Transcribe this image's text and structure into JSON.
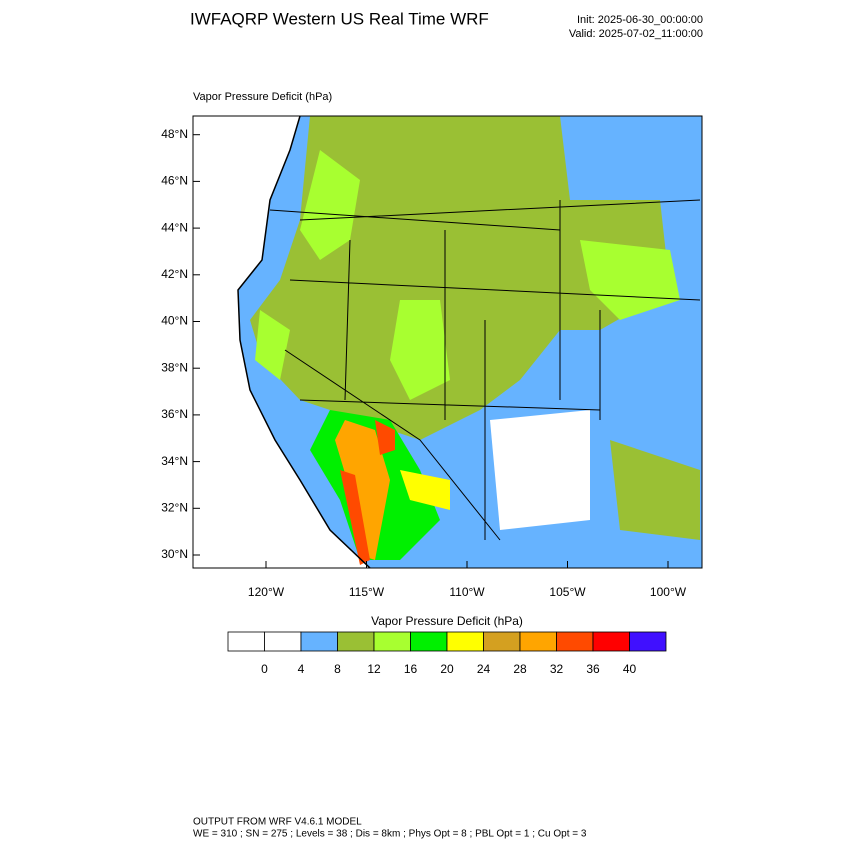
{
  "header": {
    "title": "IWFAQRP Western US Real Time WRF",
    "init": "Init: 2025-06-30_00:00:00",
    "valid": "Valid: 2025-07-02_11:00:00"
  },
  "map": {
    "label": "Vapor Pressure Deficit   (hPa)",
    "lat_ticks": [
      {
        "value": 48,
        "label": "48°N"
      },
      {
        "value": 46,
        "label": "46°N"
      },
      {
        "value": 44,
        "label": "44°N"
      },
      {
        "value": 42,
        "label": "42°N"
      },
      {
        "value": 40,
        "label": "40°N"
      },
      {
        "value": 38,
        "label": "38°N"
      },
      {
        "value": 36,
        "label": "36°N"
      },
      {
        "value": 34,
        "label": "34°N"
      },
      {
        "value": 32,
        "label": "32°N"
      },
      {
        "value": 30,
        "label": "30°N"
      }
    ],
    "lon_ticks": [
      {
        "value": -120,
        "label": "120°W"
      },
      {
        "value": -115,
        "label": "115°W"
      },
      {
        "value": -110,
        "label": "110°W"
      },
      {
        "value": -105,
        "label": "105°W"
      },
      {
        "value": -100,
        "label": "100°W"
      }
    ]
  },
  "colorbar": {
    "title": "Vapor Pressure Deficit  (hPa)",
    "levels": [
      0,
      4,
      8,
      12,
      16,
      20,
      24,
      28,
      32,
      36,
      40
    ],
    "colors": [
      "#ffffff",
      "#ffffff",
      "#66b3ff",
      "#9ac034",
      "#a8ff30",
      "#00f000",
      "#ffff00",
      "#d4a020",
      "#ffa500",
      "#ff4a00",
      "#ff0000",
      "#4010ff"
    ]
  },
  "footer": {
    "line1": "OUTPUT FROM WRF V4.6.1 MODEL",
    "line2": "WE = 310 ; SN = 275 ; Levels = 38 ; Dis = 8km ; Phys Opt = 8 ; PBL Opt = 1 ; Cu Opt = 3"
  }
}
